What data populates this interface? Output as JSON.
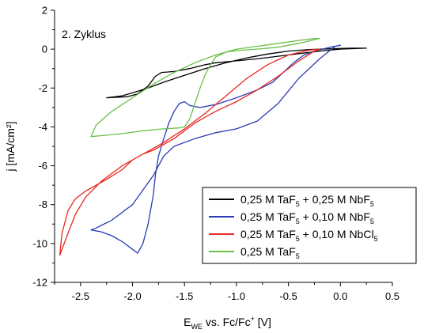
{
  "chart_data": {
    "type": "line",
    "annotation": "2. Zyklus",
    "xlabel": {
      "prefix": "E",
      "sub": "WE",
      "middle": " vs. Fc/Fc",
      "sup": "+",
      "suffix": " [V]"
    },
    "ylabel": "j [mA/cm²]",
    "xlim": [
      -2.75,
      0.5
    ],
    "ylim": [
      -12,
      2
    ],
    "x_ticks": [
      -2.5,
      -2.0,
      -1.5,
      -1.0,
      -0.5,
      0.0,
      0.5
    ],
    "x_tick_labels": [
      "-2.5",
      "-2.0",
      "-1.5",
      "-1.0",
      "-0.5",
      "0.0",
      "0.5"
    ],
    "y_ticks": [
      -12,
      -10,
      -8,
      -6,
      -4,
      -2,
      0,
      2
    ],
    "y_tick_labels": [
      "-12",
      "-10",
      "-8",
      "-6",
      "-4",
      "-2",
      "0",
      "2"
    ],
    "grid": false,
    "legend_position": "bottom-right",
    "series": [
      {
        "name": "0,25 M TaF5 + 0,25 M NbF5",
        "legend": [
          {
            "t": "0,25 M TaF"
          },
          {
            "t": "5",
            "sub": true
          },
          {
            "t": " + 0,25 M NbF"
          },
          {
            "t": "5",
            "sub": true
          }
        ],
        "color": "#000000",
        "x": [
          -2.25,
          -2.05,
          -1.95,
          -1.85,
          -1.78,
          -1.72,
          -1.6,
          -1.45,
          -1.3,
          -1.2,
          -1.1,
          -1.0,
          -0.8,
          -0.5,
          -0.2,
          0.0,
          0.25,
          0.1,
          -0.1,
          -0.3,
          -0.5,
          -0.7,
          -0.9,
          -1.1,
          -1.3,
          -1.5,
          -1.7,
          -1.85,
          -2.0,
          -2.1,
          -2.25
        ],
        "y": [
          -2.5,
          -2.45,
          -2.3,
          -1.9,
          -1.4,
          -1.2,
          -1.15,
          -1.0,
          -0.8,
          -0.7,
          -0.65,
          -0.6,
          -0.5,
          -0.3,
          -0.1,
          0.0,
          0.05,
          0.05,
          0.02,
          -0.02,
          -0.1,
          -0.25,
          -0.45,
          -0.7,
          -1.0,
          -1.35,
          -1.7,
          -2.0,
          -2.25,
          -2.4,
          -2.5
        ]
      },
      {
        "name": "0,25 M TaF5 + 0,10 M NbF5",
        "legend": [
          {
            "t": "0,25 M TaF"
          },
          {
            "t": "5",
            "sub": true
          },
          {
            "t": " + 0,10 M NbF"
          },
          {
            "t": "5",
            "sub": true
          }
        ],
        "color": "#2a3bb5",
        "x": [
          -2.4,
          -2.3,
          -2.2,
          -2.1,
          -2.0,
          -1.95,
          -1.9,
          -1.85,
          -1.8,
          -1.78,
          -1.75,
          -1.7,
          -1.65,
          -1.6,
          -1.55,
          -1.5,
          -1.45,
          -1.35,
          -1.2,
          -1.0,
          -0.8,
          -0.65,
          -0.55,
          -0.45,
          -0.35,
          -0.25,
          -0.1,
          0.0,
          -0.05,
          -0.2,
          -0.4,
          -0.6,
          -0.8,
          -1.0,
          -1.2,
          -1.4,
          -1.6,
          -1.7,
          -1.8,
          -2.0,
          -2.2,
          -2.35,
          -2.4
        ],
        "y": [
          -9.3,
          -9.4,
          -9.6,
          -9.9,
          -10.3,
          -10.5,
          -10.0,
          -9.0,
          -7.5,
          -6.5,
          -5.5,
          -4.6,
          -3.8,
          -3.2,
          -2.8,
          -2.7,
          -2.9,
          -3.0,
          -2.85,
          -2.5,
          -2.1,
          -1.7,
          -1.2,
          -0.7,
          -0.3,
          -0.1,
          0.1,
          0.2,
          0.15,
          -0.5,
          -1.5,
          -2.8,
          -3.7,
          -4.1,
          -4.3,
          -4.6,
          -5.0,
          -5.5,
          -6.5,
          -8.0,
          -8.8,
          -9.2,
          -9.3
        ]
      },
      {
        "name": "0,25 M TaF5 + 0,10 M NbCl5",
        "legend": [
          {
            "t": "0,25 M TaF"
          },
          {
            "t": "5",
            "sub": true
          },
          {
            "t": " + 0,10 M NbCl"
          },
          {
            "t": "5",
            "sub": true
          }
        ],
        "color": "#e8281e",
        "x": [
          -2.7,
          -2.68,
          -2.62,
          -2.55,
          -2.45,
          -2.35,
          -2.25,
          -2.1,
          -2.0,
          -1.9,
          -1.8,
          -1.7,
          -1.6,
          -1.5,
          -1.4,
          -1.3,
          -1.2,
          -1.0,
          -0.8,
          -0.6,
          -0.4,
          -0.25,
          -0.2,
          -0.3,
          -0.5,
          -0.7,
          -0.9,
          -1.1,
          -1.3,
          -1.5,
          -1.7,
          -1.9,
          -2.1,
          -2.3,
          -2.45,
          -2.55,
          -2.63,
          -2.7
        ],
        "y": [
          -10.6,
          -9.5,
          -8.3,
          -7.7,
          -7.3,
          -7.0,
          -6.7,
          -6.2,
          -5.7,
          -5.4,
          -5.2,
          -4.9,
          -4.6,
          -4.2,
          -3.8,
          -3.5,
          -3.2,
          -2.7,
          -2.1,
          -1.4,
          -0.6,
          -0.1,
          0.0,
          -0.05,
          -0.3,
          -0.8,
          -1.5,
          -2.4,
          -3.3,
          -4.1,
          -4.8,
          -5.4,
          -6.0,
          -6.8,
          -7.6,
          -8.5,
          -9.6,
          -10.6
        ]
      },
      {
        "name": "0,25 M TaF5",
        "legend": [
          {
            "t": "0,25 M TaF"
          },
          {
            "t": "5",
            "sub": true
          }
        ],
        "color": "#6cc04a",
        "x": [
          -2.4,
          -2.3,
          -2.1,
          -1.9,
          -1.7,
          -1.55,
          -1.5,
          -1.45,
          -1.4,
          -1.35,
          -1.3,
          -1.25,
          -1.2,
          -1.1,
          -0.95,
          -0.8,
          -0.6,
          -0.4,
          -0.2,
          -0.25,
          -0.4,
          -0.6,
          -0.8,
          -1.0,
          -1.2,
          -1.4,
          -1.6,
          -1.8,
          -2.0,
          -2.2,
          -2.35,
          -2.4
        ],
        "y": [
          -4.5,
          -4.45,
          -4.35,
          -4.2,
          -4.1,
          -4.05,
          -4.0,
          -3.6,
          -2.8,
          -2.0,
          -1.3,
          -0.8,
          -0.4,
          -0.15,
          -0.05,
          0.0,
          0.1,
          0.3,
          0.55,
          0.55,
          0.45,
          0.3,
          0.15,
          0.0,
          -0.3,
          -0.7,
          -1.2,
          -1.8,
          -2.5,
          -3.2,
          -3.9,
          -4.5
        ]
      }
    ]
  }
}
